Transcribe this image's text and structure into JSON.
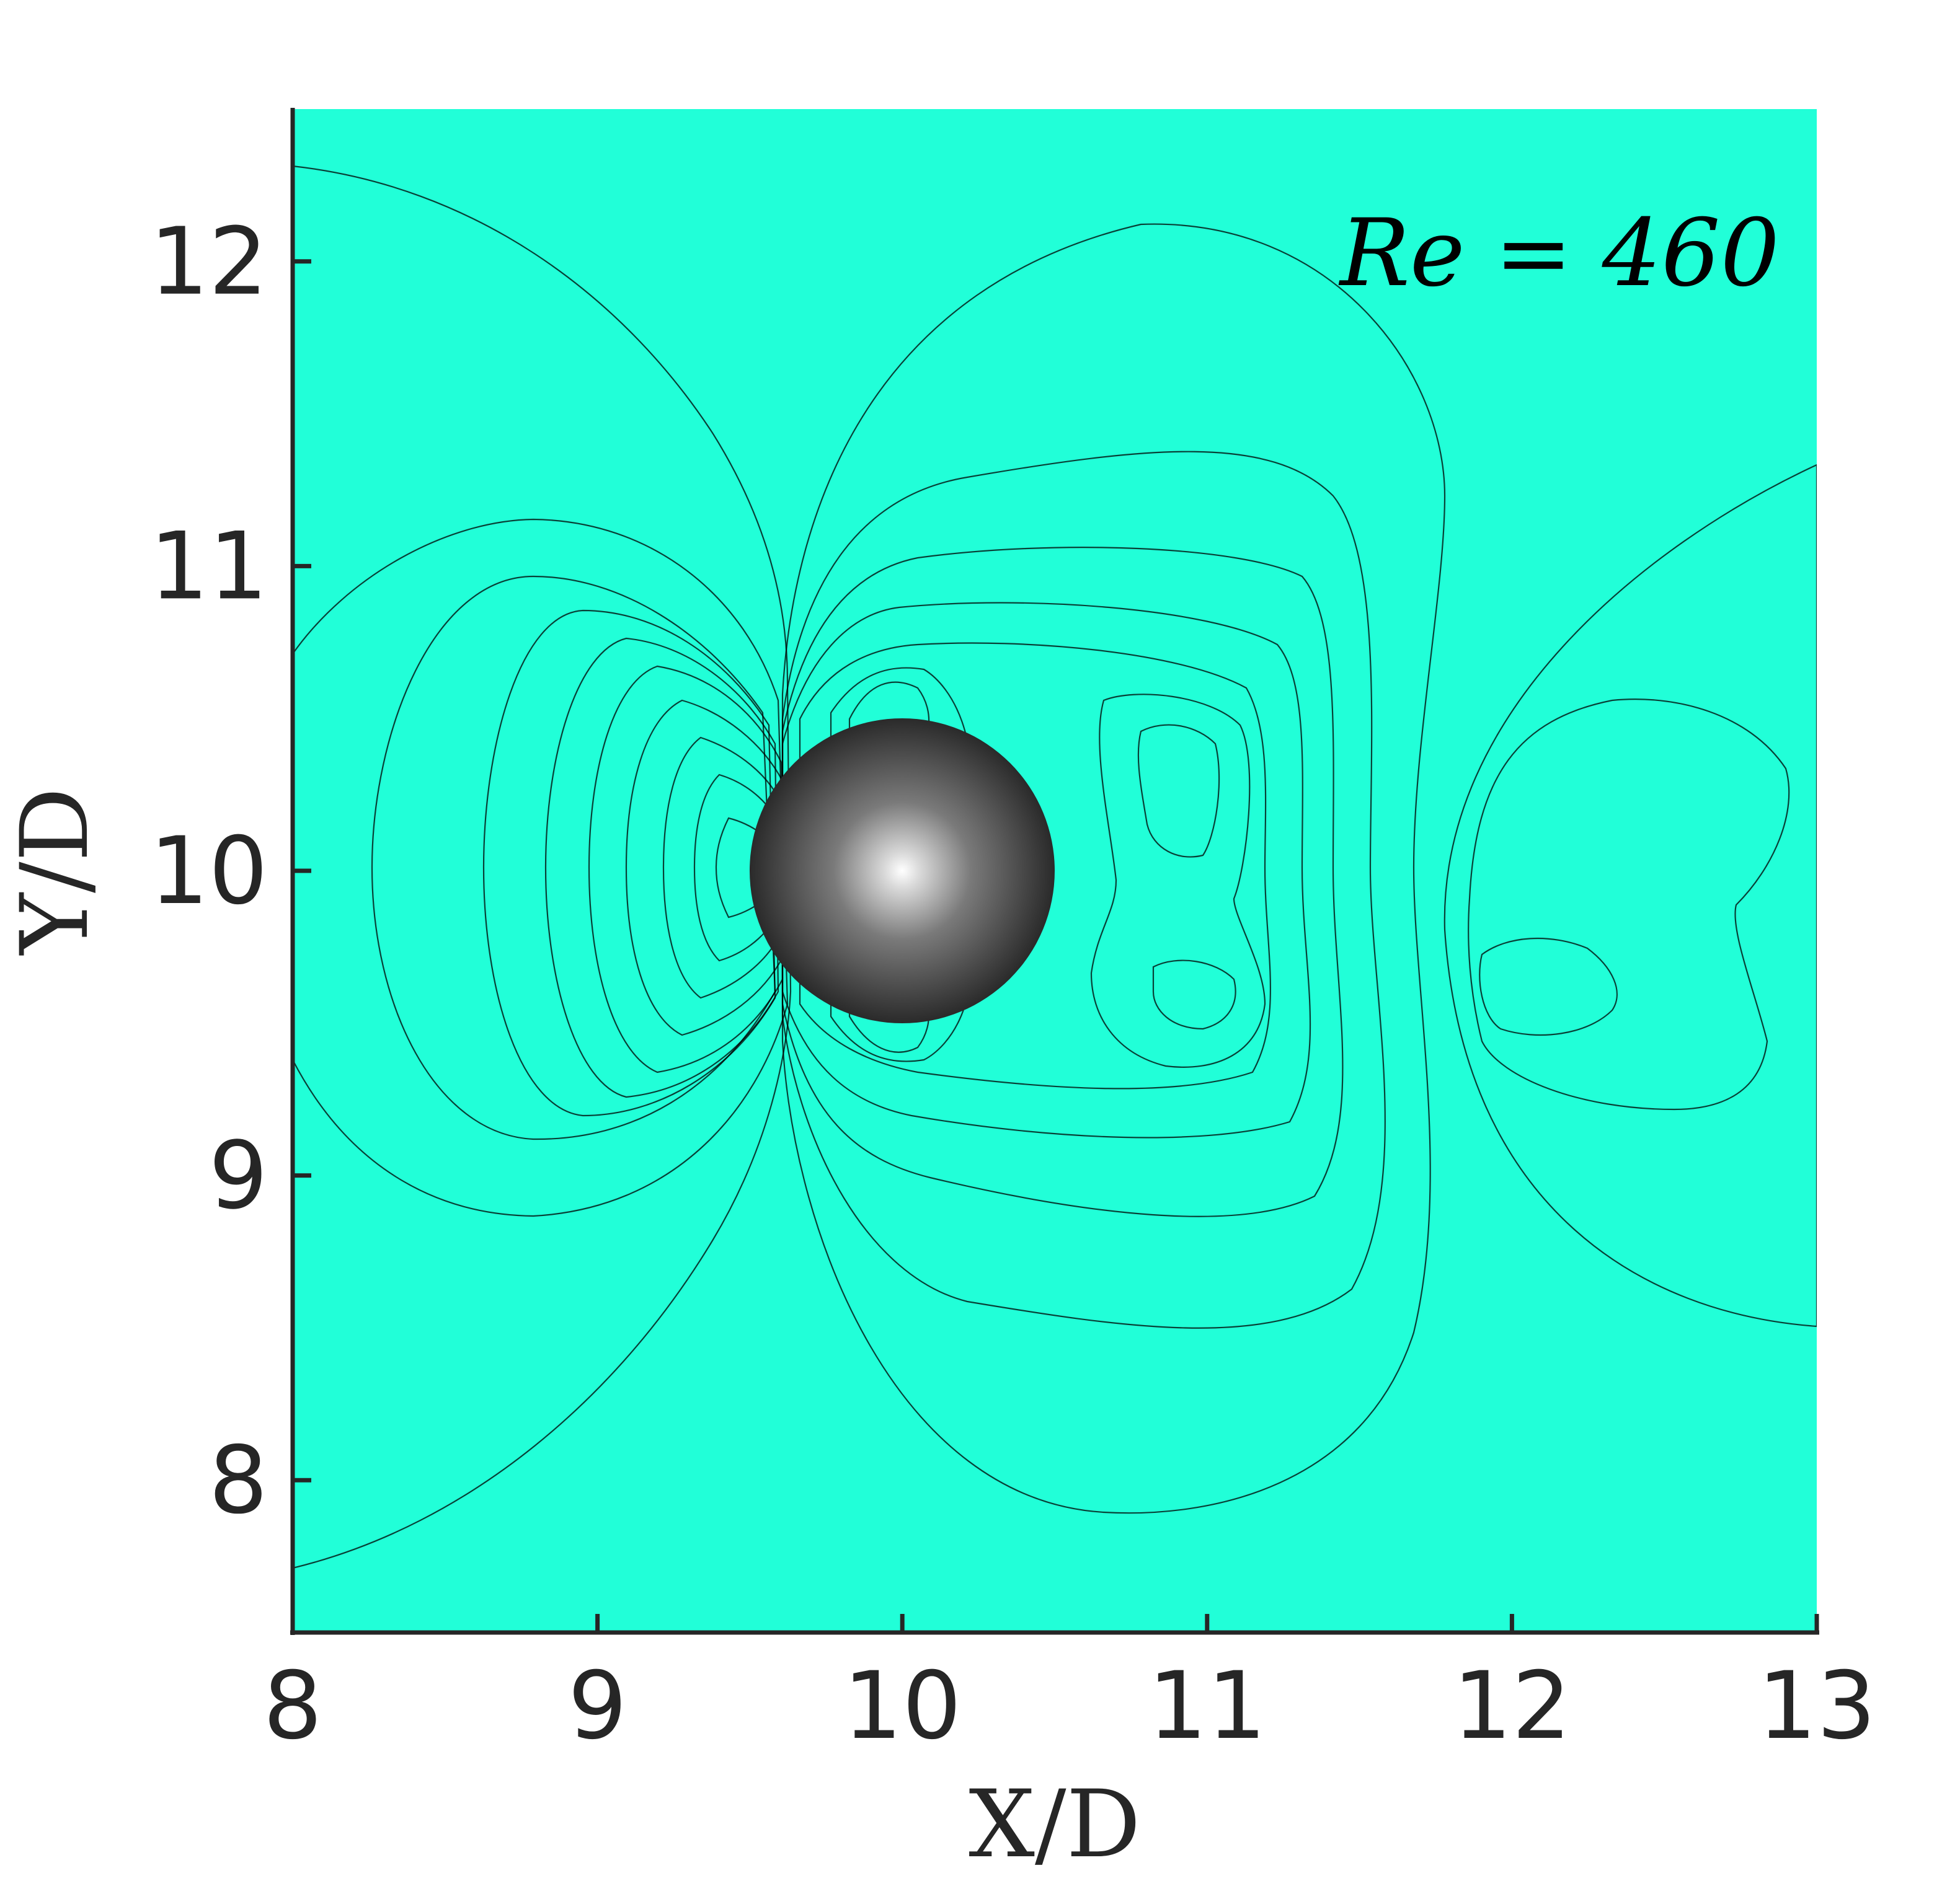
{
  "chart_data": {
    "type": "contour",
    "title": "",
    "xlabel": "X/D",
    "ylabel": "Y/D",
    "xlim": [
      8,
      13
    ],
    "ylim": [
      7.5,
      12.5
    ],
    "xticks": [
      8,
      9,
      10,
      11,
      12,
      13
    ],
    "yticks": [
      8,
      9,
      10,
      11,
      12
    ],
    "annotation": "Re = 460",
    "colormap": "jet",
    "background_color": "#21ffd8",
    "sphere": {
      "center": [
        10,
        10
      ],
      "diameter": 1
    },
    "field_extrema": [
      {
        "kind": "max",
        "location": [
          9.45,
          10.0
        ],
        "color": "#8b0000"
      },
      {
        "kind": "min",
        "location": [
          9.95,
          10.55
        ],
        "color": "#0019ff"
      },
      {
        "kind": "min",
        "location": [
          9.95,
          9.45
        ],
        "color": "#0019ff"
      },
      {
        "kind": "min",
        "location": [
          11.0,
          9.58
        ],
        "color": "#0019ff"
      },
      {
        "kind": "min",
        "location": [
          11.0,
          10.45
        ],
        "color": "#0040ff"
      },
      {
        "kind": "weak-max",
        "location": [
          12.15,
          9.6
        ],
        "color": "#7fff7a"
      }
    ]
  }
}
